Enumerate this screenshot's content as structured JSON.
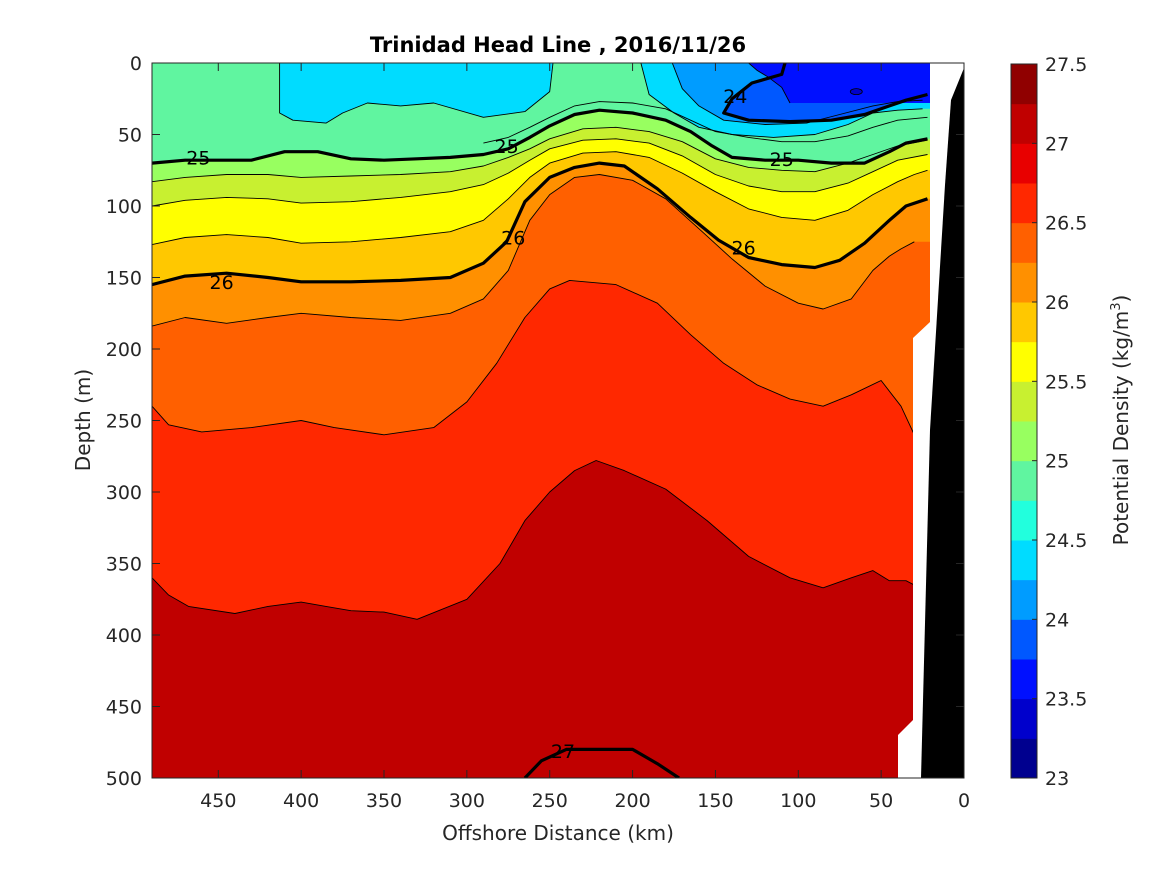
{
  "chart_data": {
    "type": "contour",
    "title": "Trinidad Head Line , 2016/11/26",
    "xlabel": "Offshore Distance (km)",
    "ylabel": "Depth (m)",
    "x_reversed": true,
    "y_reversed": true,
    "xlim": [
      0,
      490
    ],
    "ylim": [
      0,
      500
    ],
    "x_ticks": [
      "450",
      "400",
      "350",
      "300",
      "250",
      "200",
      "150",
      "100",
      "50",
      "0"
    ],
    "y_ticks": [
      "0",
      "50",
      "100",
      "150",
      "200",
      "250",
      "300",
      "350",
      "400",
      "450",
      "500"
    ],
    "colorbar": {
      "label_prefix": "Potential Density (kg/m",
      "label_sup": "3",
      "label_suffix": ")",
      "min": 23,
      "max": 27.5,
      "tick_labels": [
        "23",
        "23.5",
        "24",
        "24.5",
        "25",
        "25.5",
        "26",
        "26.5",
        "27",
        "27.5"
      ],
      "colors": [
        "#00008f",
        "#0000cc",
        "#0010ff",
        "#0058ff",
        "#009cff",
        "#00dcff",
        "#22ffdd",
        "#60f5a0",
        "#98ff60",
        "#c8f030",
        "#ffff00",
        "#ffc800",
        "#ff9000",
        "#ff6000",
        "#ff2800",
        "#e80000",
        "#c00000",
        "#900000"
      ]
    },
    "contour_labels": [
      {
        "text": "25",
        "x": 462,
        "y": 66
      },
      {
        "text": "25",
        "x": 276,
        "y": 58
      },
      {
        "text": "25",
        "x": 110,
        "y": 67
      },
      {
        "text": "24",
        "x": 138,
        "y": 23
      },
      {
        "text": "26",
        "x": 448,
        "y": 153
      },
      {
        "text": "26",
        "x": 272,
        "y": 122
      },
      {
        "text": "26",
        "x": 133,
        "y": 129
      },
      {
        "text": "27",
        "x": 242,
        "y": 481
      }
    ],
    "isopycnals": [
      {
        "level": 27.0,
        "bold": true,
        "points": [
          [
            265,
            500
          ],
          [
            255,
            488
          ],
          [
            240,
            480
          ],
          [
            200,
            480
          ],
          [
            185,
            490
          ],
          [
            172,
            500
          ]
        ]
      },
      {
        "level": 26.75,
        "bold": false,
        "points": [
          [
            490,
            360
          ],
          [
            480,
            372
          ],
          [
            468,
            380
          ],
          [
            440,
            385
          ],
          [
            420,
            380
          ],
          [
            400,
            377
          ],
          [
            385,
            380
          ],
          [
            370,
            383
          ],
          [
            350,
            384
          ],
          [
            330,
            389
          ],
          [
            300,
            375
          ],
          [
            280,
            350
          ],
          [
            265,
            320
          ],
          [
            250,
            300
          ],
          [
            235,
            285
          ],
          [
            222,
            278
          ],
          [
            205,
            285
          ],
          [
            180,
            298
          ],
          [
            155,
            320
          ],
          [
            130,
            345
          ],
          [
            105,
            360
          ],
          [
            85,
            367
          ],
          [
            68,
            360
          ],
          [
            55,
            355
          ],
          [
            45,
            362
          ],
          [
            35,
            362
          ],
          [
            30,
            365
          ]
        ]
      },
      {
        "level": 26.5,
        "bold": false,
        "points": [
          [
            490,
            240
          ],
          [
            480,
            253
          ],
          [
            460,
            258
          ],
          [
            430,
            255
          ],
          [
            400,
            250
          ],
          [
            380,
            255
          ],
          [
            350,
            260
          ],
          [
            320,
            255
          ],
          [
            300,
            237
          ],
          [
            282,
            210
          ],
          [
            265,
            178
          ],
          [
            250,
            158
          ],
          [
            238,
            152
          ],
          [
            210,
            155
          ],
          [
            185,
            168
          ],
          [
            165,
            190
          ],
          [
            145,
            210
          ],
          [
            125,
            225
          ],
          [
            105,
            235
          ],
          [
            85,
            240
          ],
          [
            68,
            232
          ],
          [
            50,
            222
          ],
          [
            38,
            240
          ],
          [
            30,
            260
          ]
        ]
      },
      {
        "level": 26.25,
        "bold": false,
        "points": [
          [
            490,
            184
          ],
          [
            470,
            178
          ],
          [
            445,
            182
          ],
          [
            420,
            178
          ],
          [
            400,
            175
          ],
          [
            370,
            178
          ],
          [
            340,
            180
          ],
          [
            310,
            175
          ],
          [
            290,
            165
          ],
          [
            275,
            145
          ],
          [
            262,
            110
          ],
          [
            250,
            92
          ],
          [
            235,
            80
          ],
          [
            220,
            78
          ],
          [
            200,
            82
          ],
          [
            180,
            95
          ],
          [
            158,
            118
          ],
          [
            140,
            137
          ],
          [
            120,
            156
          ],
          [
            100,
            168
          ],
          [
            85,
            172
          ],
          [
            68,
            165
          ],
          [
            55,
            145
          ],
          [
            45,
            135
          ],
          [
            38,
            130
          ],
          [
            30,
            125
          ]
        ]
      },
      {
        "level": 26.0,
        "bold": true,
        "points": [
          [
            490,
            155
          ],
          [
            470,
            149
          ],
          [
            445,
            147
          ],
          [
            420,
            150
          ],
          [
            400,
            153
          ],
          [
            370,
            153
          ],
          [
            340,
            152
          ],
          [
            310,
            150
          ],
          [
            290,
            140
          ],
          [
            276,
            125
          ],
          [
            265,
            97
          ],
          [
            250,
            80
          ],
          [
            235,
            73
          ],
          [
            220,
            70
          ],
          [
            205,
            72
          ],
          [
            185,
            88
          ],
          [
            165,
            108
          ],
          [
            148,
            124
          ],
          [
            130,
            136
          ],
          [
            110,
            141
          ],
          [
            90,
            143
          ],
          [
            75,
            138
          ],
          [
            60,
            126
          ],
          [
            45,
            110
          ],
          [
            35,
            100
          ],
          [
            22,
            95
          ]
        ]
      },
      {
        "level": 25.75,
        "bold": false,
        "points": [
          [
            490,
            127
          ],
          [
            470,
            122
          ],
          [
            445,
            120
          ],
          [
            420,
            122
          ],
          [
            400,
            126
          ],
          [
            370,
            125
          ],
          [
            340,
            122
          ],
          [
            310,
            118
          ],
          [
            290,
            110
          ],
          [
            275,
            95
          ],
          [
            262,
            80
          ],
          [
            250,
            70
          ],
          [
            230,
            63
          ],
          [
            210,
            62
          ],
          [
            190,
            66
          ],
          [
            170,
            77
          ],
          [
            150,
            90
          ],
          [
            130,
            102
          ],
          [
            110,
            108
          ],
          [
            90,
            110
          ],
          [
            70,
            103
          ],
          [
            55,
            92
          ],
          [
            40,
            83
          ],
          [
            30,
            78
          ],
          [
            22,
            75
          ]
        ]
      },
      {
        "level": 25.5,
        "bold": false,
        "points": [
          [
            490,
            100
          ],
          [
            470,
            96
          ],
          [
            445,
            94
          ],
          [
            420,
            95
          ],
          [
            400,
            98
          ],
          [
            370,
            97
          ],
          [
            340,
            94
          ],
          [
            310,
            90
          ],
          [
            290,
            85
          ],
          [
            275,
            77
          ],
          [
            262,
            68
          ],
          [
            250,
            60
          ],
          [
            230,
            54
          ],
          [
            210,
            53
          ],
          [
            190,
            56
          ],
          [
            170,
            65
          ],
          [
            150,
            78
          ],
          [
            130,
            86
          ],
          [
            110,
            90
          ],
          [
            90,
            90
          ],
          [
            70,
            84
          ],
          [
            55,
            76
          ],
          [
            40,
            68
          ],
          [
            22,
            64
          ]
        ]
      },
      {
        "level": 25.25,
        "bold": false,
        "points": [
          [
            490,
            83
          ],
          [
            470,
            80
          ],
          [
            445,
            78
          ],
          [
            420,
            78
          ],
          [
            400,
            80
          ],
          [
            370,
            79
          ],
          [
            340,
            78
          ],
          [
            310,
            76
          ],
          [
            290,
            72
          ],
          [
            275,
            66
          ],
          [
            262,
            60
          ],
          [
            250,
            53
          ],
          [
            230,
            46
          ],
          [
            210,
            45
          ],
          [
            190,
            48
          ],
          [
            170,
            55
          ],
          [
            150,
            67
          ],
          [
            130,
            73
          ],
          [
            110,
            75
          ],
          [
            90,
            76
          ],
          [
            70,
            70
          ],
          [
            55,
            64
          ],
          [
            40,
            58
          ],
          [
            22,
            54
          ]
        ]
      },
      {
        "level": 25.0,
        "bold": true,
        "points": [
          [
            490,
            70
          ],
          [
            470,
            68
          ],
          [
            445,
            68
          ],
          [
            430,
            68
          ],
          [
            410,
            62
          ],
          [
            390,
            62
          ],
          [
            370,
            67
          ],
          [
            350,
            68
          ],
          [
            330,
            67
          ],
          [
            310,
            66
          ],
          [
            290,
            64
          ],
          [
            275,
            60
          ],
          [
            262,
            52
          ],
          [
            250,
            44
          ],
          [
            235,
            36
          ],
          [
            220,
            33
          ],
          [
            200,
            35
          ],
          [
            180,
            40
          ],
          [
            165,
            48
          ],
          [
            152,
            58
          ],
          [
            140,
            66
          ],
          [
            120,
            68
          ],
          [
            100,
            68
          ],
          [
            80,
            70
          ],
          [
            60,
            70
          ],
          [
            45,
            62
          ],
          [
            35,
            56
          ],
          [
            22,
            53
          ]
        ]
      },
      {
        "level": 24.75,
        "bold": false,
        "points": [
          [
            290,
            56
          ],
          [
            275,
            52
          ],
          [
            262,
            45
          ],
          [
            250,
            38
          ],
          [
            235,
            30
          ],
          [
            220,
            27
          ],
          [
            200,
            28
          ],
          [
            180,
            32
          ],
          [
            165,
            40
          ],
          [
            150,
            48
          ],
          [
            130,
            52
          ],
          [
            110,
            55
          ],
          [
            90,
            55
          ],
          [
            70,
            51
          ],
          [
            55,
            45
          ],
          [
            40,
            40
          ],
          [
            22,
            38
          ]
        ]
      },
      {
        "level": 24.5,
        "bold": false,
        "points": [
          [
            413,
            0
          ],
          [
            413,
            35
          ],
          [
            405,
            40
          ],
          [
            385,
            42
          ],
          [
            375,
            35
          ],
          [
            360,
            28
          ],
          [
            340,
            30
          ],
          [
            320,
            28
          ],
          [
            290,
            38
          ],
          [
            265,
            34
          ],
          [
            250,
            20
          ],
          [
            248,
            0
          ]
        ]
      },
      {
        "level": 24.5,
        "bold": false,
        "points": [
          [
            195,
            0
          ],
          [
            190,
            22
          ],
          [
            175,
            35
          ],
          [
            160,
            45
          ],
          [
            140,
            50
          ],
          [
            115,
            52
          ],
          [
            90,
            50
          ],
          [
            70,
            43
          ],
          [
            55,
            35
          ],
          [
            40,
            33
          ],
          [
            25,
            32
          ]
        ]
      },
      {
        "level": 24.25,
        "bold": false,
        "points": [
          [
            176,
            0
          ],
          [
            170,
            18
          ],
          [
            160,
            30
          ],
          [
            145,
            40
          ],
          [
            120,
            43
          ],
          [
            95,
            42
          ],
          [
            75,
            36
          ],
          [
            55,
            30
          ],
          [
            40,
            27
          ],
          [
            25,
            26
          ]
        ]
      },
      {
        "level": 24.0,
        "bold": true,
        "points": [
          [
            108,
            0
          ],
          [
            110,
            8
          ],
          [
            128,
            14
          ],
          [
            140,
            25
          ],
          [
            145,
            35
          ],
          [
            130,
            40
          ],
          [
            105,
            41
          ],
          [
            80,
            40
          ],
          [
            60,
            36
          ],
          [
            45,
            30
          ],
          [
            35,
            26
          ],
          [
            22,
            22
          ]
        ]
      },
      {
        "level": 23.75,
        "bold": false,
        "points": [
          [
            130,
            0
          ],
          [
            125,
            5
          ],
          [
            118,
            10
          ],
          [
            110,
            17
          ],
          [
            105,
            28
          ]
        ]
      }
    ]
  }
}
